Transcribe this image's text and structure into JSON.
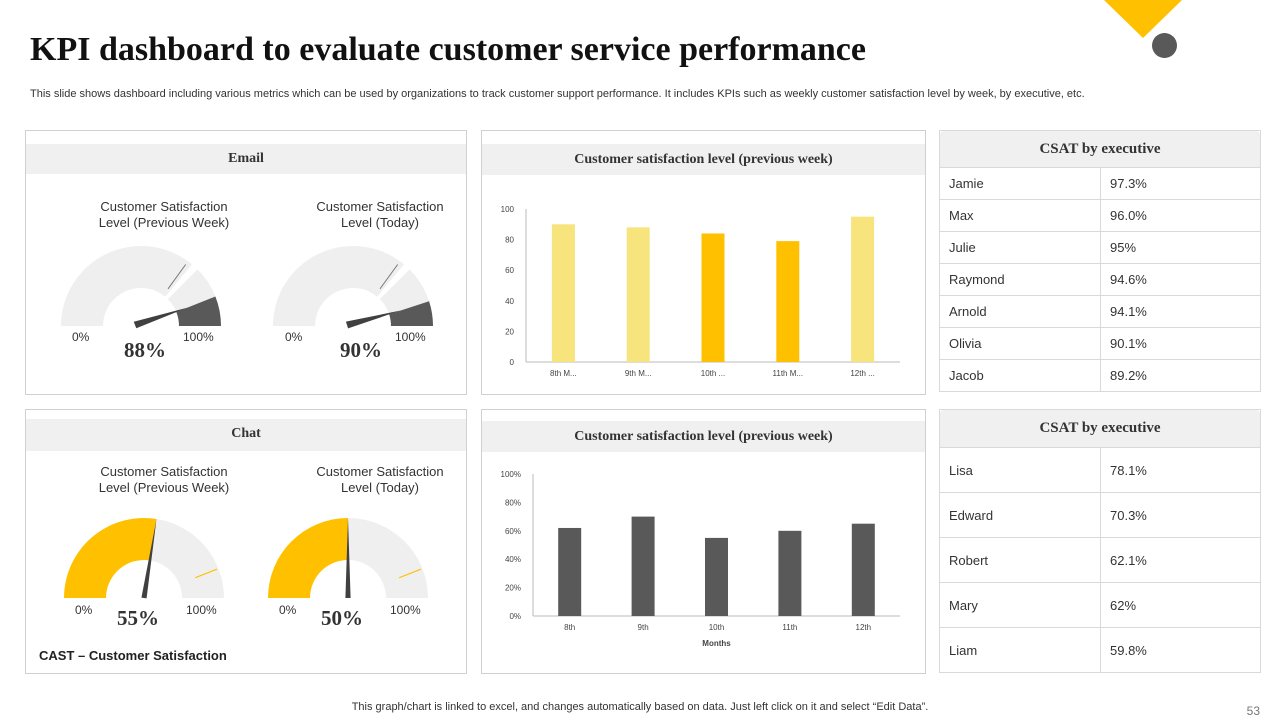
{
  "page": {
    "title": "KPI dashboard to evaluate customer service performance",
    "subtitle": "This slide shows dashboard including various metrics which can be used by organizations to track customer support performance. It includes KPIs such as weekly customer satisfaction level by week, by executive,  etc.",
    "footer": "This graph/chart is linked to excel,  and changes automatically based on data. Just left click on it and select “Edit Data”.",
    "page_number": "53",
    "note": "CAST – Customer Satisfaction"
  },
  "colors": {
    "accent": "#FFC000",
    "dark": "#595959",
    "light_bar": "#F7E47D",
    "gauge_bg": "#EFEFEF",
    "needle": "#404040"
  },
  "email": {
    "title": "Email",
    "gauges": [
      {
        "label_line1": "Customer Satisfaction",
        "label_line2": "Level (Previous  Week)",
        "value": 88,
        "value_text": "88%",
        "min_label": "0%",
        "max_label": "100%"
      },
      {
        "label_line1": "Customer Satisfaction",
        "label_line2": "Level (Today)",
        "value": 90,
        "value_text": "90%",
        "min_label": "0%",
        "max_label": "100%"
      }
    ]
  },
  "chat": {
    "title": "Chat",
    "gauges": [
      {
        "label_line1": "Customer Satisfaction",
        "label_line2": "Level (Previous  Week)",
        "value": 55,
        "value_text": "55%",
        "min_label": "0%",
        "max_label": "100%"
      },
      {
        "label_line1": "Customer Satisfaction",
        "label_line2": "Level (Today)",
        "value": 50,
        "value_text": "50%",
        "min_label": "0%",
        "max_label": "100%"
      }
    ]
  },
  "chart_data": [
    {
      "type": "bar",
      "title": "Customer satisfaction level (previous week)",
      "categories": [
        "8th M...",
        "9th M...",
        "10th ...",
        "11th M...",
        "12th ..."
      ],
      "values": [
        90,
        88,
        84,
        79,
        95
      ],
      "bar_colors": [
        "#F7E47D",
        "#F7E47D",
        "#FFC000",
        "#FFC000",
        "#F7E47D"
      ],
      "ylim": [
        0,
        100
      ],
      "yticks": [
        "0",
        "20",
        "40",
        "60",
        "80",
        "100"
      ],
      "grid": false
    },
    {
      "type": "bar",
      "title": "Customer satisfaction level (previous week)",
      "categories": [
        "8th",
        "9th",
        "10th",
        "11th",
        "12th"
      ],
      "values": [
        62,
        70,
        55,
        60,
        65
      ],
      "bar_colors": [
        "#595959",
        "#595959",
        "#595959",
        "#595959",
        "#595959"
      ],
      "xlabel": "Months",
      "ylim": [
        0,
        100
      ],
      "yticks": [
        "0%",
        "20%",
        "40%",
        "60%",
        "80%",
        "100%"
      ],
      "grid": false
    }
  ],
  "csat_tables": [
    {
      "title": "CSAT by executive",
      "rows": [
        {
          "name": "Jamie",
          "value": "97.3%"
        },
        {
          "name": "Max",
          "value": "96.0%"
        },
        {
          "name": "Julie",
          "value": "95%"
        },
        {
          "name": "Raymond",
          "value": "94.6%"
        },
        {
          "name": "Arnold",
          "value": "94.1%"
        },
        {
          "name": "Olivia",
          "value": "90.1%"
        },
        {
          "name": "Jacob",
          "value": "89.2%"
        }
      ]
    },
    {
      "title": "CSAT by executive",
      "rows": [
        {
          "name": "Lisa",
          "value": "78.1%"
        },
        {
          "name": "Edward",
          "value": "70.3%"
        },
        {
          "name": "Robert",
          "value": "62.1%"
        },
        {
          "name": "Mary",
          "value": "62%"
        },
        {
          "name": "Liam",
          "value": "59.8%"
        }
      ]
    }
  ]
}
